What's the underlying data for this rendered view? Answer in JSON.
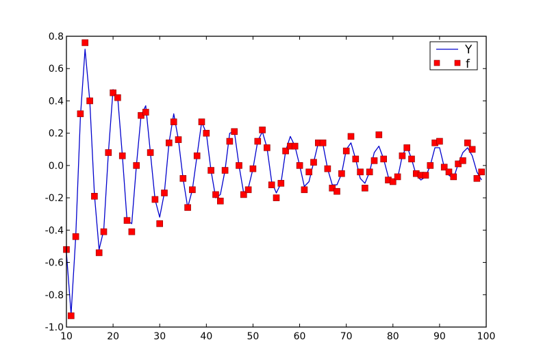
{
  "chart_data": {
    "type": "line",
    "title": "",
    "xlabel": "",
    "ylabel": "",
    "xlim": [
      10,
      100
    ],
    "ylim": [
      -1.0,
      0.8
    ],
    "grid": false,
    "legend_position": "upper right",
    "x_ticks": [
      "10",
      "20",
      "30",
      "40",
      "50",
      "60",
      "70",
      "80",
      "90",
      "100"
    ],
    "y_ticks": [
      "0.8",
      "0.6",
      "0.4",
      "0.2",
      "0.0",
      "-0.2",
      "-0.4",
      "-0.6",
      "-0.8",
      "-1.0"
    ],
    "x": [
      10,
      11,
      12,
      13,
      14,
      15,
      16,
      17,
      18,
      19,
      20,
      21,
      22,
      23,
      24,
      25,
      26,
      27,
      28,
      29,
      30,
      31,
      32,
      33,
      34,
      35,
      36,
      37,
      38,
      39,
      40,
      41,
      42,
      43,
      44,
      45,
      46,
      47,
      48,
      49,
      50,
      51,
      52,
      53,
      54,
      55,
      56,
      57,
      58,
      59,
      60,
      61,
      62,
      63,
      64,
      65,
      66,
      67,
      68,
      69,
      70,
      71,
      72,
      73,
      74,
      75,
      76,
      77,
      78,
      79,
      80,
      81,
      82,
      83,
      84,
      85,
      86,
      87,
      88,
      89,
      90,
      91,
      92,
      93,
      94,
      95,
      96,
      97,
      98,
      99
    ],
    "series": [
      {
        "name": "Y",
        "style": "line",
        "color": "#0000cc",
        "values": [
          -0.54,
          -0.92,
          -0.44,
          0.3,
          0.72,
          0.4,
          -0.18,
          -0.52,
          -0.4,
          0.08,
          0.47,
          0.42,
          0.06,
          -0.34,
          -0.36,
          0.0,
          0.31,
          0.37,
          0.08,
          -0.21,
          -0.32,
          -0.17,
          0.14,
          0.32,
          0.16,
          -0.08,
          -0.26,
          -0.15,
          0.06,
          0.27,
          0.2,
          -0.03,
          -0.2,
          -0.18,
          -0.03,
          0.2,
          0.21,
          0.0,
          -0.17,
          -0.14,
          -0.02,
          0.15,
          0.21,
          0.11,
          -0.1,
          -0.17,
          -0.11,
          0.09,
          0.18,
          0.12,
          0.0,
          -0.13,
          -0.1,
          0.02,
          0.14,
          0.13,
          -0.02,
          -0.12,
          -0.12,
          -0.05,
          0.1,
          0.14,
          0.04,
          -0.08,
          -0.11,
          -0.04,
          0.08,
          0.12,
          0.04,
          -0.07,
          -0.1,
          -0.08,
          0.06,
          0.12,
          0.04,
          -0.06,
          -0.09,
          -0.07,
          0.0,
          0.11,
          0.11,
          -0.01,
          -0.06,
          -0.08,
          0.01,
          0.08,
          0.11,
          0.06,
          -0.04,
          -0.09
        ]
      },
      {
        "name": "f",
        "style": "markers",
        "marker": "square",
        "color": "#ff0000",
        "values": [
          -0.52,
          -0.93,
          -0.44,
          0.32,
          0.76,
          0.4,
          -0.19,
          -0.54,
          -0.41,
          0.08,
          0.45,
          0.42,
          0.06,
          -0.34,
          -0.41,
          0.0,
          0.31,
          0.33,
          0.08,
          -0.21,
          -0.36,
          -0.17,
          0.14,
          0.27,
          0.16,
          -0.08,
          -0.26,
          -0.15,
          0.06,
          0.27,
          0.2,
          -0.03,
          -0.18,
          -0.22,
          -0.03,
          0.15,
          0.21,
          0.0,
          -0.18,
          -0.15,
          -0.02,
          0.15,
          0.22,
          0.11,
          -0.12,
          -0.2,
          -0.11,
          0.09,
          0.12,
          0.12,
          0.0,
          -0.15,
          -0.04,
          0.02,
          0.14,
          0.14,
          -0.02,
          -0.14,
          -0.16,
          -0.05,
          0.09,
          0.18,
          0.04,
          -0.04,
          -0.14,
          -0.04,
          0.03,
          0.19,
          0.04,
          -0.09,
          -0.1,
          -0.07,
          0.06,
          0.11,
          0.04,
          -0.05,
          -0.06,
          -0.06,
          0.0,
          0.14,
          0.15,
          -0.01,
          -0.04,
          -0.07,
          0.01,
          0.03,
          0.14,
          0.1,
          -0.08,
          -0.04
        ]
      }
    ]
  },
  "legend": {
    "items": [
      {
        "label": "Y",
        "kind": "line",
        "color": "#0000cc"
      },
      {
        "label": "f",
        "kind": "markers",
        "color": "#ff0000"
      }
    ]
  },
  "colors": {
    "line": "#0000cc",
    "marker_fill": "#ff0000",
    "marker_edge": "#8b0000",
    "axes": "#000000",
    "background": "#ffffff"
  }
}
